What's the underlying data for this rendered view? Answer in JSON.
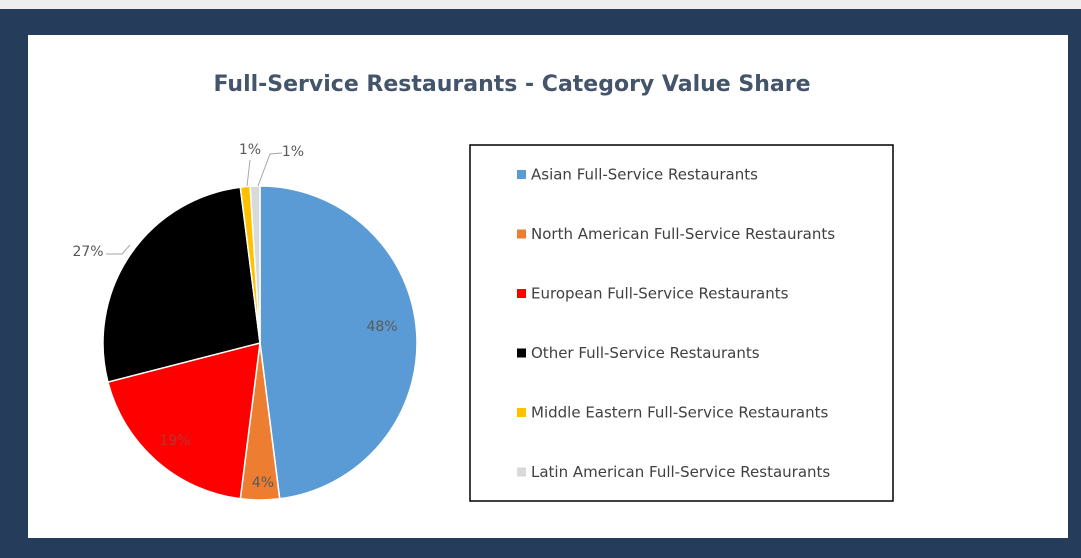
{
  "chart_data": {
    "type": "pie",
    "title": "Full-Service Restaurants - Category Value Share",
    "categories": [
      "Asian Full-Service Restaurants",
      "North American Full-Service Restaurants",
      "European Full-Service Restaurants",
      "Other Full-Service Restaurants",
      "Middle Eastern Full-Service Restaurants",
      "Latin American Full-Service Restaurants"
    ],
    "values": [
      48,
      4,
      19,
      27,
      1,
      1
    ],
    "value_labels": [
      "48%",
      "4%",
      "19%",
      "27%",
      "1%",
      "1%"
    ],
    "colors": [
      "#5b9bd5",
      "#ed7d31",
      "#ff0000",
      "#000000",
      "#ffc000",
      "#d9d9d9"
    ],
    "legend": "right"
  }
}
